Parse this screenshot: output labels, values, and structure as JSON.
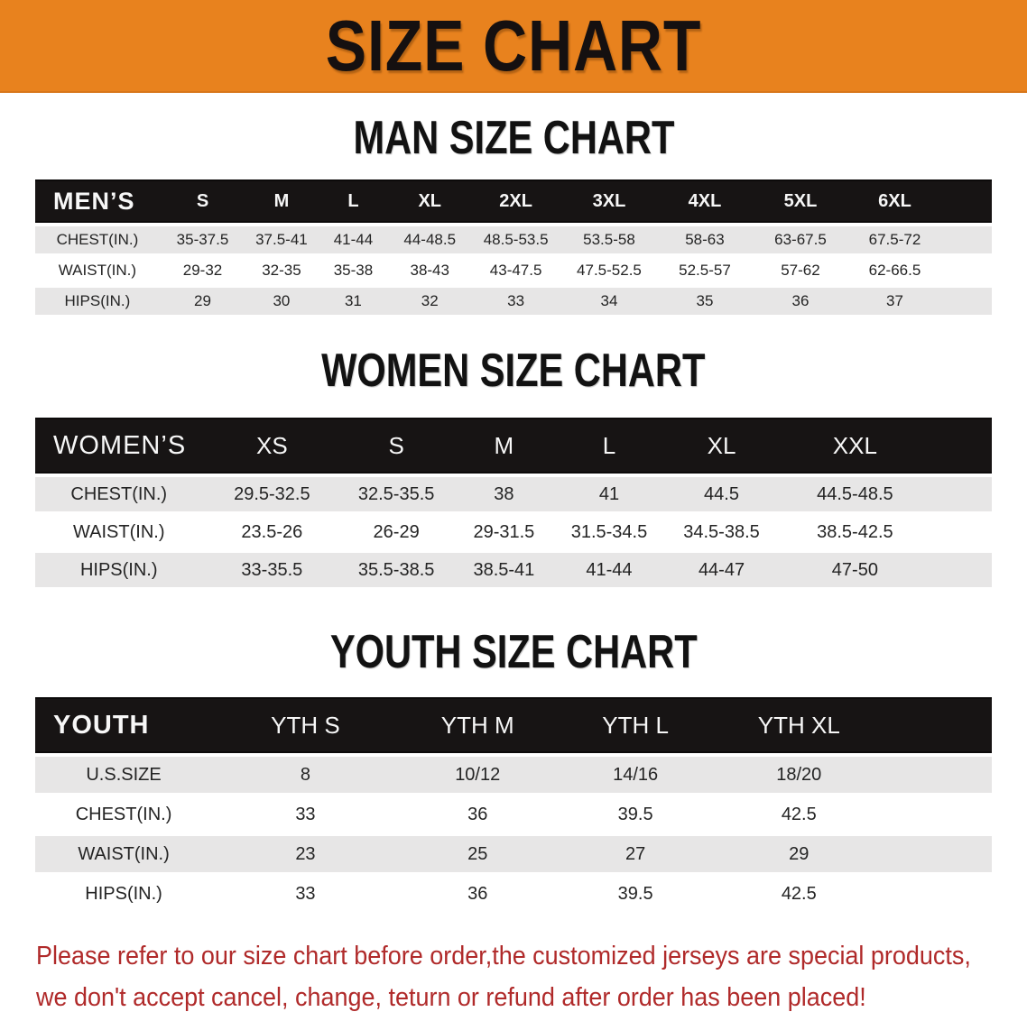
{
  "banner": {
    "title": "SIZE CHART"
  },
  "sections": {
    "men": {
      "heading": "MAN SIZE CHART"
    },
    "women": {
      "heading": "WOMEN SIZE CHART"
    },
    "youth": {
      "heading": "YOUTH SIZE CHART"
    }
  },
  "men_table": {
    "header": [
      "MEN’S",
      "S",
      "M",
      "L",
      "XL",
      "2XL",
      "3XL",
      "4XL",
      "5XL",
      "6XL"
    ],
    "rows": [
      [
        "CHEST(IN.)",
        "35-37.5",
        "37.5-41",
        "41-44",
        "44-48.5",
        "48.5-53.5",
        "53.5-58",
        "58-63",
        "63-67.5",
        "67.5-72"
      ],
      [
        "WAIST(IN.)",
        "29-32",
        "32-35",
        "35-38",
        "38-43",
        "43-47.5",
        "47.5-52.5",
        "52.5-57",
        "57-62",
        "62-66.5"
      ],
      [
        "HIPS(IN.)",
        "29",
        "30",
        "31",
        "32",
        "33",
        "34",
        "35",
        "36",
        "37"
      ]
    ]
  },
  "women_table": {
    "header": [
      "WOMEN’S",
      "XS",
      "S",
      "M",
      "L",
      "XL",
      "XXL"
    ],
    "rows": [
      [
        "CHEST(IN.)",
        "29.5-32.5",
        "32.5-35.5",
        "38",
        "41",
        "44.5",
        "44.5-48.5"
      ],
      [
        "WAIST(IN.)",
        "23.5-26",
        "26-29",
        "29-31.5",
        "31.5-34.5",
        "34.5-38.5",
        "38.5-42.5"
      ],
      [
        "HIPS(IN.)",
        "33-35.5",
        "35.5-38.5",
        "38.5-41",
        "41-44",
        "44-47",
        "47-50"
      ]
    ]
  },
  "youth_table": {
    "header": [
      "YOUTH",
      "YTH S",
      "YTH M",
      "YTH L",
      "YTH XL"
    ],
    "rows": [
      [
        "U.S.SIZE",
        "8",
        "10/12",
        "14/16",
        "18/20"
      ],
      [
        "CHEST(IN.)",
        "33",
        "36",
        "39.5",
        "42.5"
      ],
      [
        "WAIST(IN.)",
        "23",
        "25",
        "27",
        "29"
      ],
      [
        "HIPS(IN.)",
        "33",
        "36",
        "39.5",
        "42.5"
      ]
    ]
  },
  "notice": {
    "line1": "Please refer to our size chart before order,the customized jerseys are special products,",
    "line2": "we don't accept cancel, change, teturn or refund after order has been placed!"
  },
  "colors": {
    "banner_bg": "#E8821E",
    "bar_bg": "#171414",
    "stripe": "#E7E6E6",
    "notice": "#B02A2A"
  }
}
